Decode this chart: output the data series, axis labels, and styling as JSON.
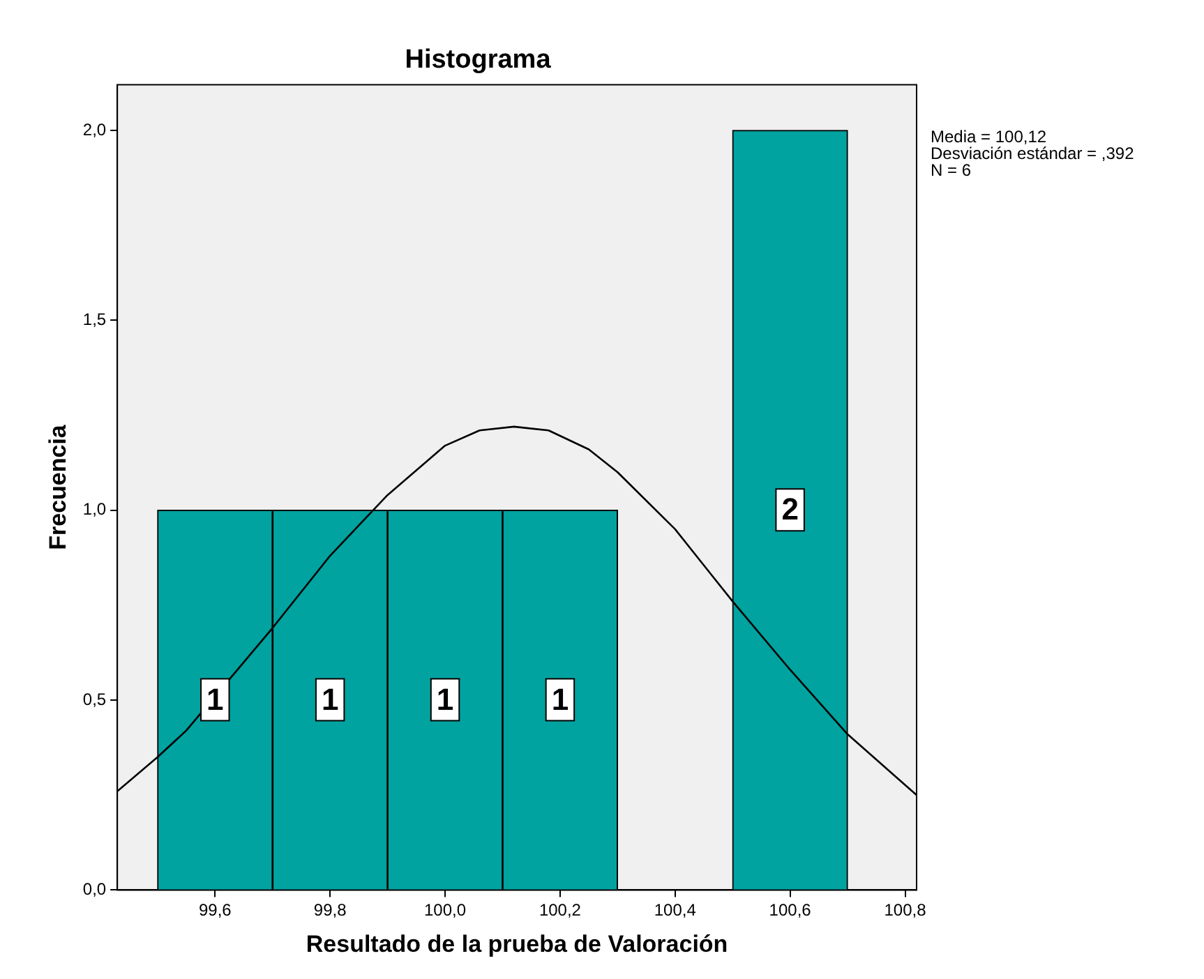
{
  "chart_data": {
    "type": "histogram",
    "title": "Histograma",
    "xlabel": "Resultado de la prueba de Valoración",
    "ylabel": "Frecuencia",
    "bins": [
      99.5,
      99.7,
      99.9,
      100.1,
      100.3,
      100.5,
      100.7
    ],
    "values": [
      1,
      1,
      1,
      1,
      0,
      2
    ],
    "value_labels": [
      "1",
      "1",
      "1",
      "1",
      null,
      "2"
    ],
    "color": "#00a3a0",
    "series": [
      {
        "type": "line",
        "color": "#000000",
        "x": [
          99.43,
          99.5,
          99.55,
          99.65,
          99.7,
          99.8,
          99.9,
          100.0,
          100.06,
          100.12,
          100.18,
          100.25,
          100.3,
          100.4,
          100.5,
          100.6,
          100.7,
          100.82
        ],
        "values": [
          0.26,
          0.35,
          0.42,
          0.6,
          0.69,
          0.88,
          1.04,
          1.17,
          1.21,
          1.22,
          1.21,
          1.16,
          1.1,
          0.95,
          0.76,
          0.58,
          0.41,
          0.25
        ]
      }
    ],
    "marker": "none",
    "xlim": [
      99.43,
      100.82
    ],
    "xticks": [
      {
        "value": 99.6,
        "label": "99,6"
      },
      {
        "value": 99.8,
        "label": "99,8"
      },
      {
        "value": 100.0,
        "label": "100,0"
      },
      {
        "value": 100.2,
        "label": "100,2"
      },
      {
        "value": 100.4,
        "label": "100,4"
      },
      {
        "value": 100.6,
        "label": "100,6"
      },
      {
        "value": 100.8,
        "label": "100,8"
      }
    ],
    "ylim": [
      0,
      2.12
    ],
    "yticks": [
      {
        "value": 0,
        "label": "0,0"
      },
      {
        "value": 0.5,
        "label": "0,5"
      },
      {
        "value": 1,
        "label": "1,0"
      },
      {
        "value": 1.5,
        "label": "1,5"
      },
      {
        "value": 2,
        "label": "2,0"
      }
    ],
    "grid": false,
    "legend": false,
    "annotations": [
      "Media = 100,12",
      "Desviación estándar = ,392",
      "N = 6"
    ]
  }
}
